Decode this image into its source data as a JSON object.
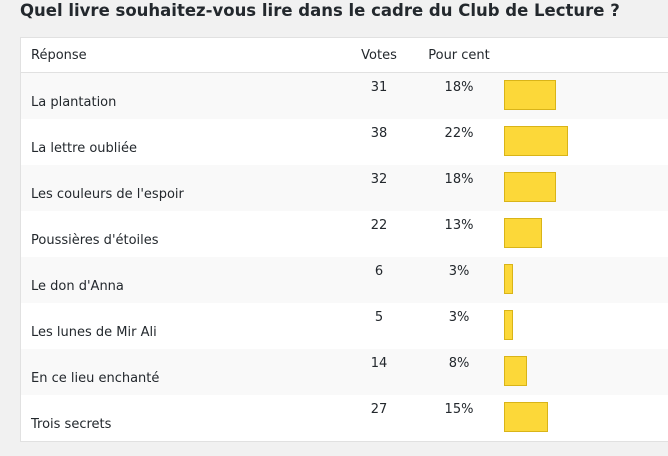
{
  "poll": {
    "question": "Quel livre souhaitez-vous lire dans le cadre du Club de Lecture ?",
    "headers": {
      "answer": "Réponse",
      "votes": "Votes",
      "percent": "Pour cent"
    },
    "bar_color": "#fcd839",
    "rows": [
      {
        "answer": "La plantation",
        "votes": "31",
        "percent": "18%"
      },
      {
        "answer": "La lettre oubliée",
        "votes": "38",
        "percent": "22%"
      },
      {
        "answer": "Les couleurs de l'espoir",
        "votes": "32",
        "percent": "18%"
      },
      {
        "answer": "Poussières d'étoiles",
        "votes": "22",
        "percent": "13%"
      },
      {
        "answer": "Le don d'Anna",
        "votes": "6",
        "percent": "3%"
      },
      {
        "answer": "Les lunes de Mir Ali",
        "votes": "5",
        "percent": "3%"
      },
      {
        "answer": "En ce lieu enchanté",
        "votes": "14",
        "percent": "8%"
      },
      {
        "answer": "Trois secrets",
        "votes": "27",
        "percent": "15%"
      }
    ]
  }
}
